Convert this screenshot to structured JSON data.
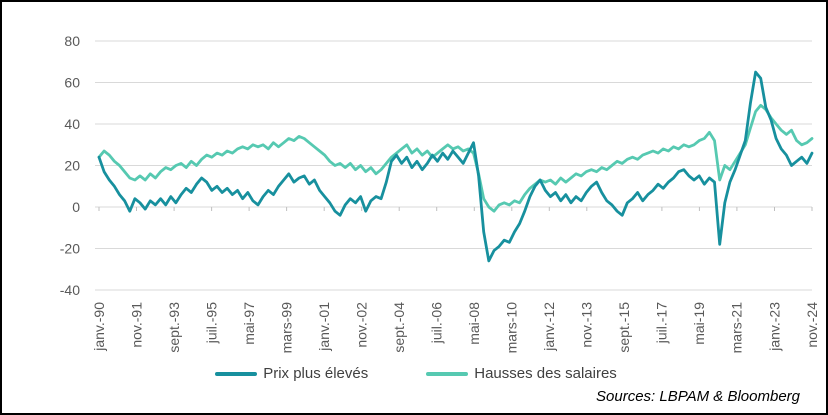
{
  "source_note": "Sources: LBPAM & Bloomberg",
  "colors": {
    "background": "#FFFFFF",
    "border": "#000000",
    "grid": "#D9D9D9",
    "tick": "#BFBFBF",
    "axis_text": "#595959",
    "legend_text": "#404040",
    "source_text": "#000000",
    "series_prix": "#17909E",
    "series_hausses": "#56C9B1"
  },
  "chart_data": {
    "type": "line",
    "title": "",
    "xlabel": "",
    "ylabel": "",
    "ylim": [
      -40,
      80
    ],
    "y_ticks": [
      80,
      60,
      40,
      20,
      0,
      -20,
      -40
    ],
    "grid": "horizontal",
    "legend_position": "bottom-center",
    "x_tick_labels": [
      "janv.-90",
      "nov.-91",
      "sept.-93",
      "juil.-95",
      "mai-97",
      "mars-99",
      "janv.-01",
      "nov.-02",
      "sept.-04",
      "juil.-06",
      "mai-08",
      "mars-10",
      "janv.-12",
      "nov.-13",
      "sept.-15",
      "juil.-17",
      "mai-19",
      "mars-21",
      "janv.-23",
      "nov.-24"
    ],
    "x_start": "1990-Q1",
    "x_end": "2024-Q4",
    "x_step": "quarter",
    "series": [
      {
        "name": "Prix plus élevés",
        "color": "#17909E",
        "values": [
          24,
          17,
          13,
          10,
          6,
          3,
          -2,
          4,
          2,
          -1,
          3,
          1,
          4,
          1,
          5,
          2,
          6,
          9,
          7,
          11,
          14,
          12,
          8,
          10,
          7,
          9,
          6,
          8,
          4,
          7,
          3,
          1,
          5,
          8,
          6,
          10,
          13,
          16,
          12,
          14,
          15,
          11,
          13,
          8,
          5,
          2,
          -2,
          -4,
          1,
          4,
          2,
          5,
          -2,
          3,
          5,
          4,
          12,
          22,
          25,
          21,
          24,
          19,
          22,
          18,
          21,
          25,
          22,
          26,
          23,
          27,
          24,
          21,
          26,
          31,
          15,
          -12,
          -26,
          -21,
          -19,
          -16,
          -17,
          -12,
          -8,
          -2,
          5,
          10,
          13,
          8,
          5,
          7,
          3,
          6,
          2,
          5,
          3,
          7,
          10,
          12,
          7,
          3,
          1,
          -2,
          -4,
          2,
          4,
          7,
          3,
          6,
          8,
          11,
          9,
          12,
          14,
          17,
          18,
          15,
          13,
          15,
          11,
          14,
          12,
          -18,
          2,
          12,
          18,
          25,
          32,
          50,
          65,
          62,
          48,
          42,
          33,
          28,
          25,
          20,
          22,
          24,
          21,
          26
        ]
      },
      {
        "name": "Hausses des salaires",
        "color": "#56C9B1",
        "values": [
          24,
          27,
          25,
          22,
          20,
          17,
          14,
          13,
          15,
          13,
          16,
          14,
          17,
          19,
          18,
          20,
          21,
          19,
          22,
          20,
          23,
          25,
          24,
          26,
          25,
          27,
          26,
          28,
          29,
          28,
          30,
          29,
          30,
          28,
          31,
          29,
          31,
          33,
          32,
          34,
          33,
          31,
          29,
          27,
          25,
          22,
          20,
          21,
          19,
          21,
          18,
          20,
          17,
          19,
          16,
          18,
          21,
          24,
          26,
          28,
          30,
          26,
          28,
          25,
          27,
          24,
          26,
          28,
          30,
          28,
          29,
          27,
          28,
          26,
          16,
          4,
          0,
          -2,
          1,
          2,
          1,
          3,
          2,
          6,
          9,
          11,
          13,
          12,
          13,
          11,
          14,
          12,
          14,
          16,
          15,
          17,
          18,
          17,
          19,
          18,
          20,
          22,
          21,
          23,
          24,
          23,
          25,
          26,
          27,
          26,
          28,
          27,
          29,
          28,
          30,
          29,
          30,
          32,
          33,
          36,
          32,
          13,
          20,
          18,
          22,
          26,
          30,
          38,
          46,
          49,
          47,
          43,
          40,
          37,
          35,
          37,
          32,
          30,
          31,
          33
        ]
      }
    ]
  }
}
